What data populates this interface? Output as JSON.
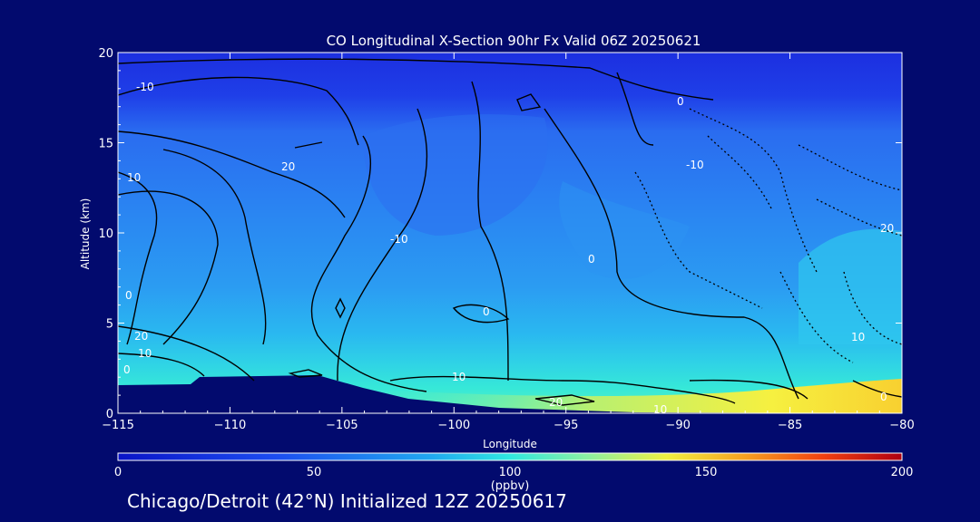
{
  "footer": "Chicago/Detroit (42°N) Initialized 12Z 20250617",
  "chart_data": {
    "type": "heatmap",
    "title": "CO Longitudinal X-Section 90hr  Fx Valid 06Z 20250621",
    "xlabel": "Longitude",
    "ylabel": "Altitude (km)",
    "xlim": [
      -115,
      -80
    ],
    "ylim": [
      0,
      20
    ],
    "x_ticks": [
      "−115",
      "−110",
      "−105",
      "−100",
      "−95",
      "−90",
      "−85",
      "−80"
    ],
    "y_ticks": [
      "0",
      "5",
      "10",
      "15",
      "20"
    ],
    "colorbar": {
      "label": "(ppbv)",
      "range": [
        0,
        200
      ],
      "ticks": [
        "0",
        "50",
        "100",
        "150",
        "200"
      ]
    },
    "contour_labels": [
      "0",
      "10",
      "20",
      "0",
      "10",
      "20",
      "-10",
      "0",
      "10",
      "20",
      "0",
      "-10",
      "20",
      "0",
      "10",
      "10",
      "0",
      "-10",
      "0",
      "10",
      "20",
      "0"
    ]
  }
}
